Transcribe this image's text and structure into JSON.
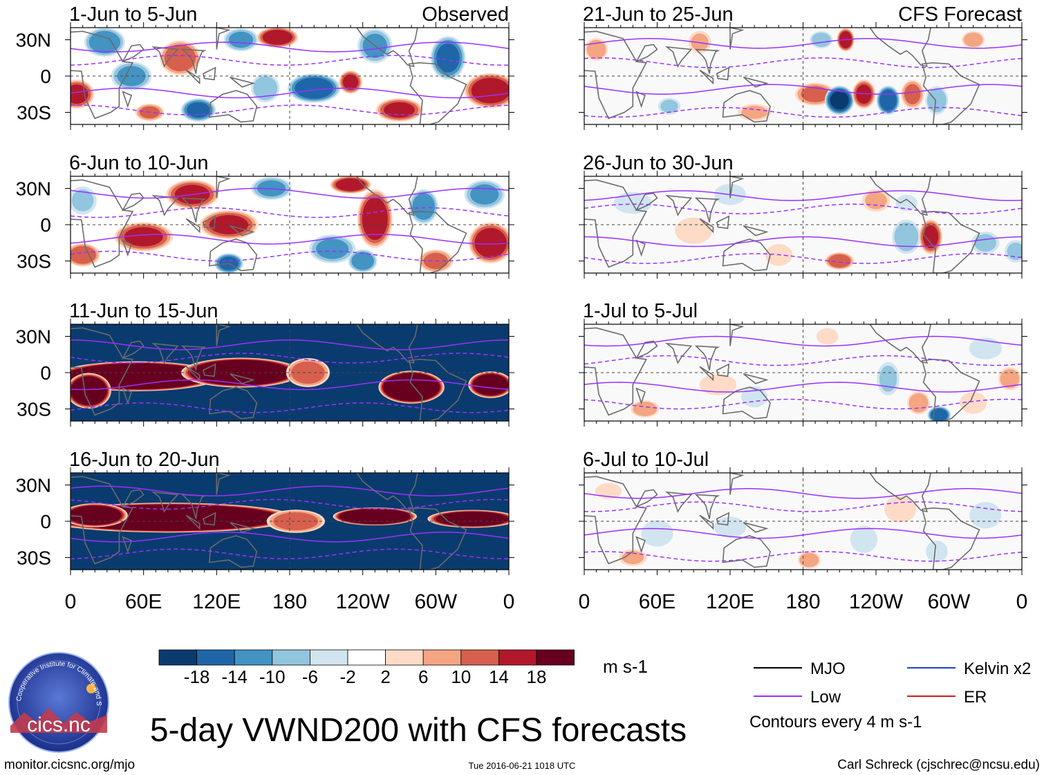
{
  "chart_data": {
    "type": "heatmap",
    "title": "5-day VWND200 with CFS forecasts",
    "variable": "VWND200",
    "units": "m s-1",
    "x_ticks": [
      "0",
      "60E",
      "120E",
      "180",
      "120W",
      "60W",
      "0"
    ],
    "y_ticks": [
      "30N",
      "0",
      "30S"
    ],
    "x_range_deg": [
      0,
      360
    ],
    "y_range_deg": [
      -40,
      40
    ],
    "colorbar": {
      "levels": [
        -18,
        -14,
        -10,
        -6,
        -2,
        2,
        6,
        10,
        14,
        18
      ],
      "labels": [
        "-18",
        "-14",
        "-10",
        "-6",
        "-2",
        "2",
        "6",
        "10",
        "14",
        "18"
      ],
      "colors": [
        "#0a3b6e",
        "#1f66a8",
        "#4393c3",
        "#92c5de",
        "#d1e5f0",
        "#ffffff",
        "#fddbc7",
        "#f4a582",
        "#d6604d",
        "#b2182b",
        "#67001f"
      ]
    },
    "legend": {
      "items": [
        {
          "label": "MJO",
          "color": "#000000"
        },
        {
          "label": "Kelvin x2",
          "color": "#1f3fd6"
        },
        {
          "label": "Low",
          "color": "#9b30ff"
        },
        {
          "label": "ER",
          "color": "#d41c1c"
        }
      ],
      "note": "Contours every 4 m s-1"
    },
    "panels": [
      {
        "period": "1-Jun to 5-Jun",
        "tag": "Observed",
        "column": "left",
        "blobs": [
          {
            "lon": 5,
            "lat": -15,
            "val": 16,
            "rlon": 12,
            "rlat": 10
          },
          {
            "lon": 28,
            "lat": 28,
            "val": -14,
            "rlon": 14,
            "rlat": 10
          },
          {
            "lon": 50,
            "lat": 0,
            "val": -12,
            "rlon": 14,
            "rlat": 10
          },
          {
            "lon": 65,
            "lat": -30,
            "val": 12,
            "rlon": 10,
            "rlat": 6
          },
          {
            "lon": 90,
            "lat": 15,
            "val": 14,
            "rlon": 14,
            "rlat": 12
          },
          {
            "lon": 105,
            "lat": -28,
            "val": -16,
            "rlon": 12,
            "rlat": 8
          },
          {
            "lon": 140,
            "lat": 30,
            "val": -12,
            "rlon": 12,
            "rlat": 8
          },
          {
            "lon": 170,
            "lat": 32,
            "val": 18,
            "rlon": 14,
            "rlat": 7
          },
          {
            "lon": 160,
            "lat": -10,
            "val": -10,
            "rlon": 10,
            "rlat": 10
          },
          {
            "lon": 200,
            "lat": -10,
            "val": -18,
            "rlon": 18,
            "rlat": 10
          },
          {
            "lon": 230,
            "lat": -5,
            "val": 16,
            "rlon": 8,
            "rlat": 8
          },
          {
            "lon": 250,
            "lat": 25,
            "val": -12,
            "rlon": 12,
            "rlat": 12
          },
          {
            "lon": 270,
            "lat": -28,
            "val": 16,
            "rlon": 16,
            "rlat": 8
          },
          {
            "lon": 310,
            "lat": 15,
            "val": -16,
            "rlon": 12,
            "rlat": 15
          },
          {
            "lon": 345,
            "lat": -12,
            "val": 18,
            "rlon": 18,
            "rlat": 12
          }
        ]
      },
      {
        "period": "6-Jun to 10-Jun",
        "tag": "",
        "column": "left",
        "blobs": [
          {
            "lon": 10,
            "lat": 20,
            "val": -8,
            "rlon": 10,
            "rlat": 10
          },
          {
            "lon": 10,
            "lat": -25,
            "val": 14,
            "rlon": 12,
            "rlat": 8
          },
          {
            "lon": 60,
            "lat": -10,
            "val": 16,
            "rlon": 20,
            "rlat": 10
          },
          {
            "lon": 100,
            "lat": 25,
            "val": 16,
            "rlon": 18,
            "rlat": 10
          },
          {
            "lon": 130,
            "lat": 0,
            "val": 16,
            "rlon": 20,
            "rlat": 10
          },
          {
            "lon": 130,
            "lat": -32,
            "val": -16,
            "rlon": 10,
            "rlat": 7
          },
          {
            "lon": 165,
            "lat": 30,
            "val": -12,
            "rlon": 14,
            "rlat": 8
          },
          {
            "lon": 215,
            "lat": -20,
            "val": -12,
            "rlon": 16,
            "rlat": 10
          },
          {
            "lon": 230,
            "lat": 33,
            "val": 18,
            "rlon": 14,
            "rlat": 6
          },
          {
            "lon": 250,
            "lat": 5,
            "val": 18,
            "rlon": 12,
            "rlat": 20
          },
          {
            "lon": 240,
            "lat": -30,
            "val": -14,
            "rlon": 10,
            "rlat": 8
          },
          {
            "lon": 290,
            "lat": 15,
            "val": -14,
            "rlon": 10,
            "rlat": 12
          },
          {
            "lon": 300,
            "lat": -30,
            "val": 12,
            "rlon": 12,
            "rlat": 8
          },
          {
            "lon": 340,
            "lat": 25,
            "val": -12,
            "rlon": 14,
            "rlat": 10
          },
          {
            "lon": 345,
            "lat": -15,
            "val": 18,
            "rlon": 15,
            "rlat": 14
          }
        ]
      },
      {
        "period": "11-Jun to 15-Jun",
        "tag": "",
        "column": "left",
        "background": -22,
        "blobs": [
          {
            "lon": 55,
            "lat": -3,
            "val": 40,
            "rlon": 55,
            "rlat": 10
          },
          {
            "lon": 140,
            "lat": 0,
            "val": 36,
            "rlon": 40,
            "rlat": 10
          },
          {
            "lon": 15,
            "lat": -15,
            "val": 30,
            "rlon": 15,
            "rlat": 12
          },
          {
            "lon": 280,
            "lat": -12,
            "val": 38,
            "rlon": 22,
            "rlat": 11
          },
          {
            "lon": 345,
            "lat": -10,
            "val": 28,
            "rlon": 15,
            "rlat": 9
          },
          {
            "lon": 195,
            "lat": 0,
            "val": 14,
            "rlon": 15,
            "rlat": 10
          }
        ]
      },
      {
        "period": "16-Jun to 20-Jun",
        "tag": "",
        "column": "left",
        "background": -22,
        "blobs": [
          {
            "lon": 80,
            "lat": 3,
            "val": 42,
            "rlon": 85,
            "rlat": 10
          },
          {
            "lon": 20,
            "lat": 5,
            "val": 30,
            "rlon": 22,
            "rlat": 8
          },
          {
            "lon": 250,
            "lat": 4,
            "val": 38,
            "rlon": 28,
            "rlat": 6
          },
          {
            "lon": 330,
            "lat": 2,
            "val": 30,
            "rlon": 30,
            "rlat": 6
          },
          {
            "lon": 185,
            "lat": 0,
            "val": 14,
            "rlon": 20,
            "rlat": 8
          }
        ]
      },
      {
        "period": "21-Jun to 25-Jun",
        "tag": "CFS Forecast",
        "column": "right",
        "blobs": [
          {
            "lon": 10,
            "lat": 22,
            "val": 10,
            "rlon": 8,
            "rlat": 8
          },
          {
            "lon": 95,
            "lat": 28,
            "val": 8,
            "rlon": 8,
            "rlat": 8
          },
          {
            "lon": 70,
            "lat": -25,
            "val": -8,
            "rlon": 8,
            "rlat": 6
          },
          {
            "lon": 215,
            "lat": 30,
            "val": 18,
            "rlon": 6,
            "rlat": 8
          },
          {
            "lon": 195,
            "lat": 30,
            "val": -10,
            "rlon": 8,
            "rlat": 6
          },
          {
            "lon": 190,
            "lat": -15,
            "val": 12,
            "rlon": 14,
            "rlat": 8
          },
          {
            "lon": 210,
            "lat": -20,
            "val": -20,
            "rlon": 10,
            "rlat": 10
          },
          {
            "lon": 230,
            "lat": -15,
            "val": 16,
            "rlon": 8,
            "rlat": 10
          },
          {
            "lon": 250,
            "lat": -20,
            "val": -18,
            "rlon": 8,
            "rlat": 10
          },
          {
            "lon": 270,
            "lat": -15,
            "val": 12,
            "rlon": 8,
            "rlat": 10
          },
          {
            "lon": 290,
            "lat": -20,
            "val": -10,
            "rlon": 8,
            "rlat": 10
          },
          {
            "lon": 320,
            "lat": 30,
            "val": 10,
            "rlon": 8,
            "rlat": 6
          },
          {
            "lon": 140,
            "lat": -30,
            "val": 8,
            "rlon": 12,
            "rlat": 6
          }
        ]
      },
      {
        "period": "26-Jun to 30-Jun",
        "tag": "",
        "column": "right",
        "blobs": [
          {
            "lon": 40,
            "lat": 18,
            "val": -6,
            "rlon": 14,
            "rlat": 8
          },
          {
            "lon": 90,
            "lat": -5,
            "val": 5,
            "rlon": 14,
            "rlat": 10
          },
          {
            "lon": 120,
            "lat": 25,
            "val": -5,
            "rlon": 12,
            "rlat": 8
          },
          {
            "lon": 210,
            "lat": -30,
            "val": 14,
            "rlon": 10,
            "rlat": 6
          },
          {
            "lon": 240,
            "lat": 20,
            "val": 8,
            "rlon": 10,
            "rlat": 8
          },
          {
            "lon": 265,
            "lat": -10,
            "val": -10,
            "rlon": 10,
            "rlat": 12
          },
          {
            "lon": 265,
            "lat": 18,
            "val": -6,
            "rlon": 8,
            "rlat": 6
          },
          {
            "lon": 285,
            "lat": -10,
            "val": 16,
            "rlon": 8,
            "rlat": 12
          },
          {
            "lon": 330,
            "lat": -15,
            "val": -8,
            "rlon": 10,
            "rlat": 8
          },
          {
            "lon": 355,
            "lat": -22,
            "val": -8,
            "rlon": 8,
            "rlat": 8
          },
          {
            "lon": 160,
            "lat": -25,
            "val": 6,
            "rlon": 10,
            "rlat": 8
          }
        ]
      },
      {
        "period": "1-Jul to 5-Jul",
        "tag": "",
        "column": "right",
        "blobs": [
          {
            "lon": 50,
            "lat": -30,
            "val": 10,
            "rlon": 10,
            "rlat": 6
          },
          {
            "lon": 110,
            "lat": -10,
            "val": 5,
            "rlon": 14,
            "rlat": 8
          },
          {
            "lon": 140,
            "lat": -20,
            "val": -5,
            "rlon": 10,
            "rlat": 8
          },
          {
            "lon": 200,
            "lat": 30,
            "val": 6,
            "rlon": 8,
            "rlat": 6
          },
          {
            "lon": 250,
            "lat": -5,
            "val": -8,
            "rlon": 8,
            "rlat": 12
          },
          {
            "lon": 275,
            "lat": -25,
            "val": 10,
            "rlon": 8,
            "rlat": 8
          },
          {
            "lon": 292,
            "lat": -35,
            "val": -18,
            "rlon": 8,
            "rlat": 6
          },
          {
            "lon": 330,
            "lat": 20,
            "val": -6,
            "rlon": 12,
            "rlat": 8
          },
          {
            "lon": 350,
            "lat": -5,
            "val": 10,
            "rlon": 8,
            "rlat": 8
          },
          {
            "lon": 320,
            "lat": -25,
            "val": 6,
            "rlon": 10,
            "rlat": 8
          }
        ]
      },
      {
        "period": "6-Jul to 10-Jul",
        "tag": "",
        "column": "right",
        "blobs": [
          {
            "lon": 40,
            "lat": -30,
            "val": 8,
            "rlon": 10,
            "rlat": 6
          },
          {
            "lon": 60,
            "lat": -10,
            "val": -5,
            "rlon": 12,
            "rlat": 10
          },
          {
            "lon": 120,
            "lat": -5,
            "val": -5,
            "rlon": 12,
            "rlat": 8
          },
          {
            "lon": 185,
            "lat": -32,
            "val": 10,
            "rlon": 8,
            "rlat": 6
          },
          {
            "lon": 230,
            "lat": -15,
            "val": -6,
            "rlon": 10,
            "rlat": 10
          },
          {
            "lon": 260,
            "lat": 10,
            "val": 5,
            "rlon": 12,
            "rlat": 10
          },
          {
            "lon": 290,
            "lat": -25,
            "val": -6,
            "rlon": 8,
            "rlat": 8
          },
          {
            "lon": 330,
            "lat": 5,
            "val": -5,
            "rlon": 12,
            "rlat": 10
          },
          {
            "lon": 20,
            "lat": 25,
            "val": 5,
            "rlon": 10,
            "rlat": 6
          }
        ]
      }
    ]
  },
  "logo": {
    "text": "cics.nc",
    "ring_text": "Cooperative Institute for Climate and Satellites"
  },
  "footer": {
    "left": "monitor.cicsnc.org/mjo",
    "center": "Tue 2016-06-21 1018 UTC",
    "right": "Carl Schreck (cjschrec@ncsu.edu)"
  },
  "colors": {
    "grid": "#555555",
    "land": "#6b6b6b",
    "low_contour": "#9b30ff"
  }
}
